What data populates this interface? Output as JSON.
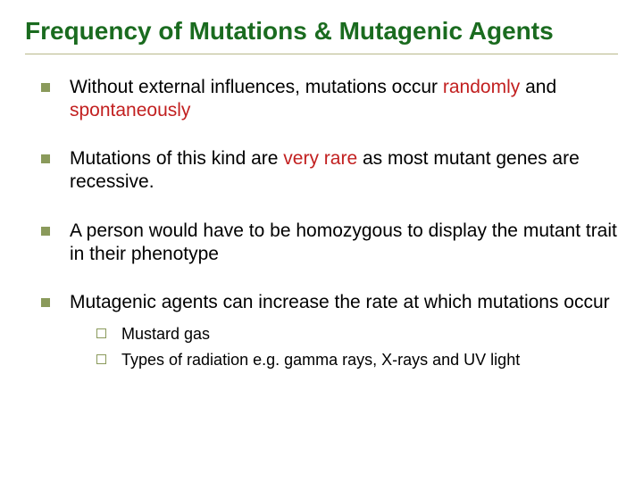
{
  "title": "Frequency of Mutations & Mutagenic Agents",
  "colors": {
    "title_color": "#1a6b1f",
    "bullet_fill": "#8a9a5b",
    "subbullet_border": "#8a9a5b",
    "emphasis_color": "#c22020",
    "body_text": "#000000",
    "rule_color": "#b8b88a",
    "background": "#ffffff"
  },
  "typography": {
    "title_fontsize": 28,
    "body_fontsize": 21,
    "sub_fontsize": 18,
    "font_family": "Arial"
  },
  "bullets": [
    {
      "pre": "Without external influences, mutations occur ",
      "em": "randomly",
      "mid": " and ",
      "em2": "spontaneously",
      "post": ""
    },
    {
      "pre": "Mutations of this kind are ",
      "em": "very rare",
      "post": " as most mutant genes are recessive."
    },
    {
      "pre": "A person would have to be homozygous to display the mutant trait in their phenotype",
      "em": "",
      "post": ""
    },
    {
      "pre": "Mutagenic agents can increase the rate at which mutations occur",
      "em": "",
      "post": "",
      "sub": [
        "Mustard gas",
        "Types of radiation e.g. gamma rays, X-rays and UV light"
      ]
    }
  ]
}
